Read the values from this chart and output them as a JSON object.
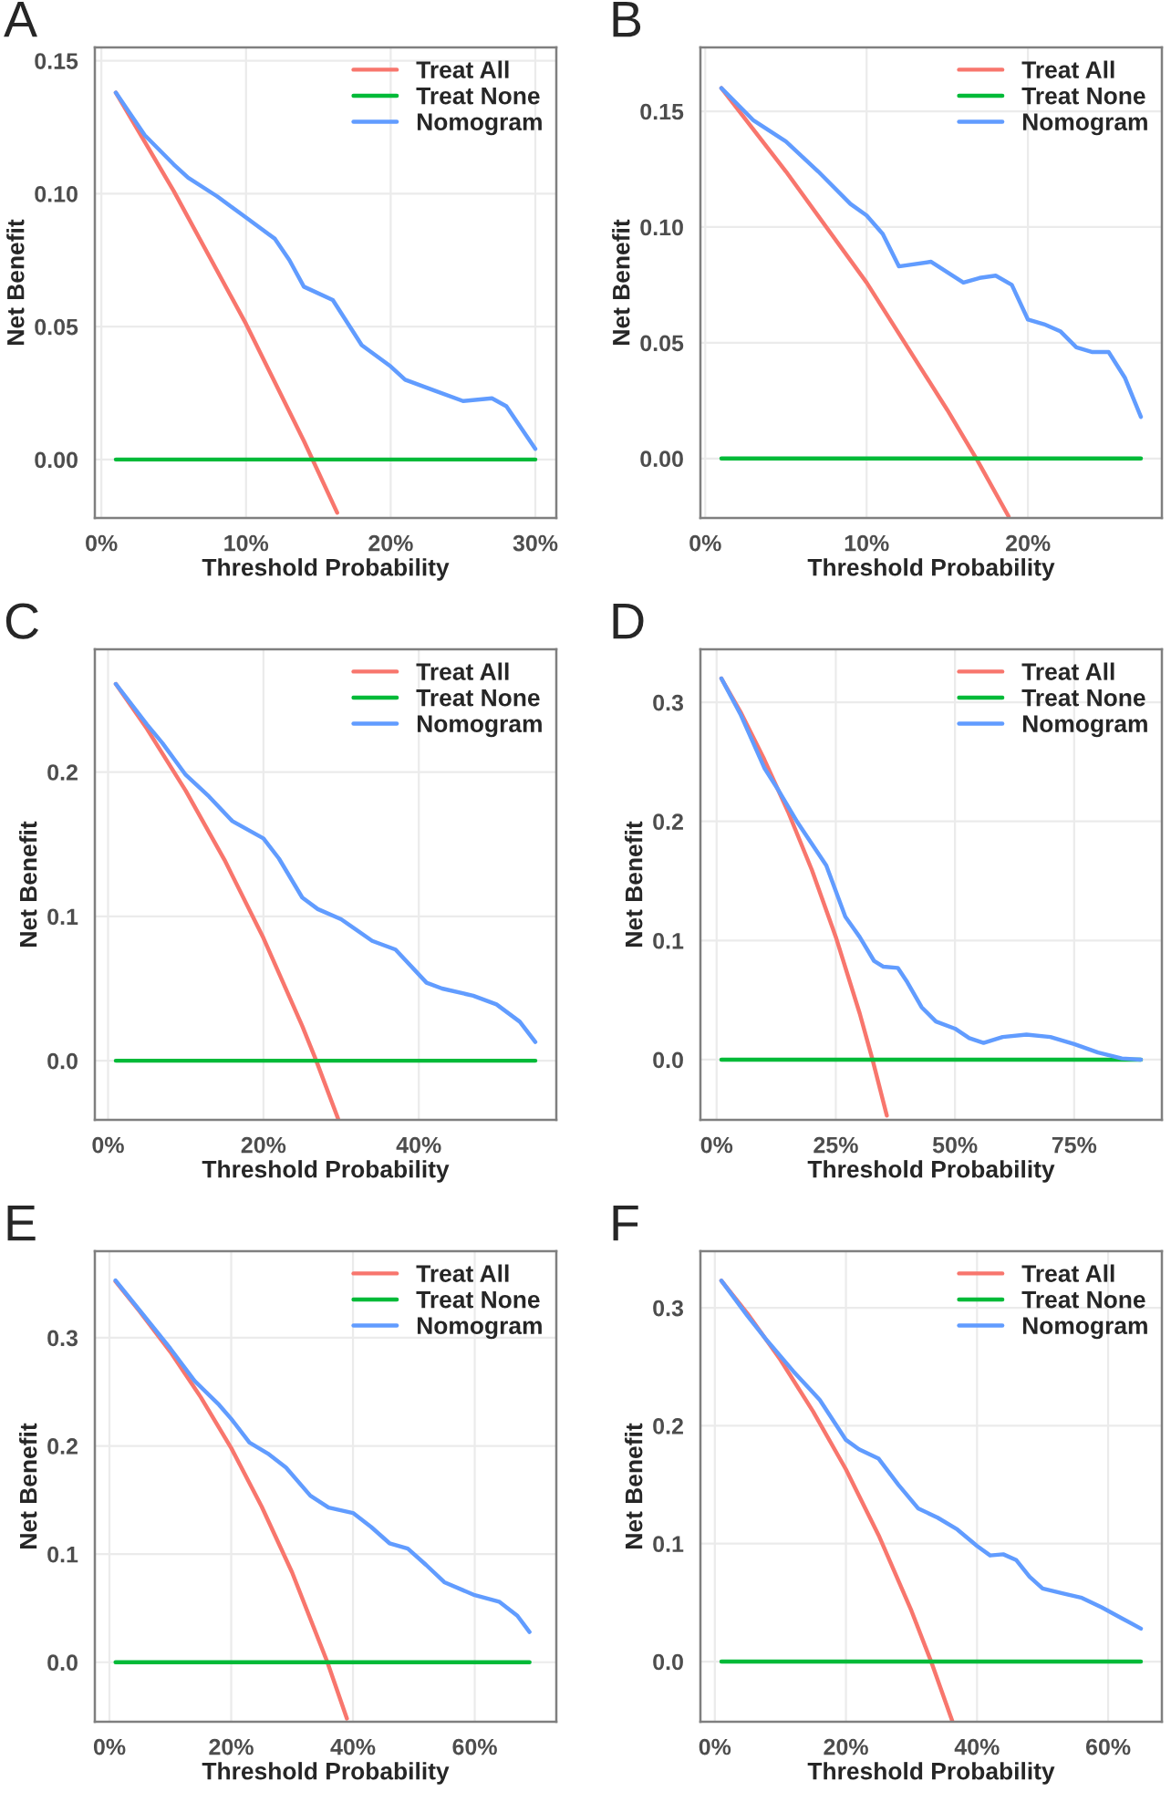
{
  "chart_data": [
    {
      "type": "line",
      "title": "A",
      "xlabel": "Threshold Probability",
      "ylabel": "Net Benefit",
      "legend": "top right",
      "grid": true,
      "xlim": [
        -0.0045,
        0.3145
      ],
      "ylim": [
        -0.022,
        0.155
      ],
      "xticks": [
        {
          "value": 0,
          "label": "0%"
        },
        {
          "value": 0.1,
          "label": "10%"
        },
        {
          "value": 0.2,
          "label": "20%"
        },
        {
          "value": 0.3,
          "label": "30%"
        }
      ],
      "yticks": [
        {
          "value": 0,
          "label": "0.00"
        },
        {
          "value": 0.05,
          "label": "0.05"
        },
        {
          "value": 0.1,
          "label": "0.10"
        },
        {
          "value": 0.15,
          "label": "0.15"
        }
      ],
      "series": [
        {
          "name": "Treat All",
          "color": "#f8766d",
          "x": [
            0.01,
            0.05,
            0.1,
            0.14,
            0.163
          ],
          "values": [
            0.138,
            0.101,
            0.051,
            0.007,
            -0.02
          ]
        },
        {
          "name": "Treat None",
          "color": "#00ba38",
          "x": [
            0.01,
            0.3
          ],
          "values": [
            0,
            0
          ]
        },
        {
          "name": "Nomogram",
          "color": "#619cff",
          "x": [
            0.01,
            0.03,
            0.05,
            0.06,
            0.08,
            0.1,
            0.12,
            0.13,
            0.14,
            0.16,
            0.18,
            0.2,
            0.21,
            0.23,
            0.25,
            0.27,
            0.28,
            0.3
          ],
          "values": [
            0.138,
            0.122,
            0.111,
            0.106,
            0.099,
            0.091,
            0.083,
            0.075,
            0.065,
            0.06,
            0.043,
            0.035,
            0.03,
            0.026,
            0.022,
            0.023,
            0.02,
            0.004
          ]
        }
      ]
    },
    {
      "type": "line",
      "title": "B",
      "xlabel": "Threshold Probability",
      "ylabel": "Net Benefit",
      "legend": "top right",
      "grid": true,
      "xlim": [
        -0.003,
        0.283
      ],
      "ylim": [
        -0.0257,
        0.1776
      ],
      "xticks": [
        {
          "value": 0,
          "label": "0%"
        },
        {
          "value": 0.1,
          "label": "10%"
        },
        {
          "value": 0.2,
          "label": "20%"
        }
      ],
      "yticks": [
        {
          "value": 0,
          "label": "0.00"
        },
        {
          "value": 0.05,
          "label": "0.05"
        },
        {
          "value": 0.1,
          "label": "0.10"
        },
        {
          "value": 0.15,
          "label": "0.15"
        }
      ],
      "series": [
        {
          "name": "Treat All",
          "color": "#f8766d",
          "x": [
            0.01,
            0.05,
            0.1,
            0.15,
            0.168,
            0.188
          ],
          "values": [
            0.16,
            0.124,
            0.076,
            0.021,
            0,
            -0.025
          ]
        },
        {
          "name": "Treat None",
          "color": "#00ba38",
          "x": [
            0.01,
            0.27
          ],
          "values": [
            0,
            0
          ]
        },
        {
          "name": "Nomogram",
          "color": "#619cff",
          "x": [
            0.01,
            0.03,
            0.05,
            0.07,
            0.09,
            0.1,
            0.11,
            0.12,
            0.14,
            0.16,
            0.17,
            0.18,
            0.19,
            0.2,
            0.21,
            0.22,
            0.23,
            0.24,
            0.25,
            0.26,
            0.27
          ],
          "values": [
            0.16,
            0.146,
            0.137,
            0.124,
            0.11,
            0.105,
            0.097,
            0.083,
            0.085,
            0.076,
            0.078,
            0.079,
            0.075,
            0.06,
            0.058,
            0.055,
            0.048,
            0.046,
            0.046,
            0.035,
            0.018
          ]
        }
      ]
    },
    {
      "type": "line",
      "title": "C",
      "xlabel": "Threshold Probability",
      "ylabel": "Net Benefit",
      "legend": "top right",
      "grid": true,
      "xlim": [
        -0.017,
        0.577
      ],
      "ylim": [
        -0.041,
        0.285
      ],
      "xticks": [
        {
          "value": 0,
          "label": "0%"
        },
        {
          "value": 0.2,
          "label": "20%"
        },
        {
          "value": 0.4,
          "label": "40%"
        }
      ],
      "yticks": [
        {
          "value": 0,
          "label": "0.0"
        },
        0.1,
        0.2
      ],
      "series": [
        {
          "name": "Treat All",
          "color": "#f8766d",
          "x": [
            0.01,
            0.05,
            0.1,
            0.15,
            0.2,
            0.25,
            0.268,
            0.296
          ],
          "values": [
            0.261,
            0.23,
            0.187,
            0.139,
            0.085,
            0.024,
            0,
            -0.04
          ]
        },
        {
          "name": "Treat None",
          "color": "#00ba38",
          "x": [
            0.01,
            0.55
          ],
          "values": [
            0,
            0
          ]
        },
        {
          "name": "Nomogram",
          "color": "#619cff",
          "x": [
            0.01,
            0.05,
            0.07,
            0.1,
            0.13,
            0.16,
            0.2,
            0.22,
            0.25,
            0.27,
            0.3,
            0.34,
            0.37,
            0.41,
            0.43,
            0.47,
            0.5,
            0.53,
            0.55
          ],
          "values": [
            0.261,
            0.233,
            0.22,
            0.198,
            0.183,
            0.166,
            0.154,
            0.14,
            0.113,
            0.105,
            0.098,
            0.083,
            0.077,
            0.054,
            0.05,
            0.045,
            0.039,
            0.027,
            0.013
          ]
        }
      ]
    },
    {
      "type": "line",
      "title": "D",
      "xlabel": "Threshold Probability",
      "ylabel": "Net Benefit",
      "legend": "top right",
      "grid": true,
      "xlim": [
        -0.034,
        0.934
      ],
      "ylim": [
        -0.0506,
        0.3445
      ],
      "xticks": [
        {
          "value": 0,
          "label": "0%"
        },
        {
          "value": 0.25,
          "label": "25%"
        },
        {
          "value": 0.5,
          "label": "50%"
        },
        {
          "value": 0.75,
          "label": "75%"
        }
      ],
      "yticks": [
        {
          "value": 0,
          "label": "0.0"
        },
        0.1,
        0.2,
        0.3
      ],
      "series": [
        {
          "name": "Treat All",
          "color": "#f8766d",
          "x": [
            0.01,
            0.05,
            0.1,
            0.15,
            0.2,
            0.25,
            0.3,
            0.327,
            0.357
          ],
          "values": [
            0.32,
            0.292,
            0.252,
            0.208,
            0.159,
            0.103,
            0.039,
            0,
            -0.047
          ]
        },
        {
          "name": "Treat None",
          "color": "#00ba38",
          "x": [
            0.01,
            0.89
          ],
          "values": [
            0,
            0
          ]
        },
        {
          "name": "Nomogram",
          "color": "#619cff",
          "x": [
            0.01,
            0.05,
            0.1,
            0.13,
            0.17,
            0.2,
            0.23,
            0.27,
            0.3,
            0.33,
            0.35,
            0.38,
            0.4,
            0.43,
            0.46,
            0.5,
            0.53,
            0.56,
            0.6,
            0.65,
            0.7,
            0.75,
            0.8,
            0.85,
            0.89
          ],
          "values": [
            0.32,
            0.29,
            0.245,
            0.226,
            0.199,
            0.181,
            0.163,
            0.12,
            0.103,
            0.083,
            0.078,
            0.077,
            0.065,
            0.044,
            0.032,
            0.026,
            0.018,
            0.014,
            0.019,
            0.021,
            0.019,
            0.013,
            0.006,
            0.001,
            0.0
          ]
        }
      ]
    },
    {
      "type": "line",
      "title": "E",
      "xlabel": "Threshold Probability",
      "ylabel": "Net Benefit",
      "legend": "top right",
      "grid": true,
      "xlim": [
        -0.024,
        0.734
      ],
      "ylim": [
        -0.055,
        0.38
      ],
      "xticks": [
        {
          "value": 0,
          "label": "0%"
        },
        {
          "value": 0.2,
          "label": "20%"
        },
        {
          "value": 0.4,
          "label": "40%"
        },
        {
          "value": 0.6,
          "label": "60%"
        }
      ],
      "yticks": [
        {
          "value": 0,
          "label": "0.0"
        },
        0.1,
        0.2,
        0.3
      ],
      "series": [
        {
          "name": "Treat All",
          "color": "#f8766d",
          "x": [
            0.01,
            0.05,
            0.1,
            0.15,
            0.2,
            0.25,
            0.3,
            0.358,
            0.39
          ],
          "values": [
            0.352,
            0.324,
            0.287,
            0.245,
            0.198,
            0.144,
            0.083,
            0,
            -0.052
          ]
        },
        {
          "name": "Treat None",
          "color": "#00ba38",
          "x": [
            0.01,
            0.69
          ],
          "values": [
            0,
            0
          ]
        },
        {
          "name": "Nomogram",
          "color": "#619cff",
          "x": [
            0.01,
            0.05,
            0.1,
            0.14,
            0.18,
            0.2,
            0.23,
            0.26,
            0.29,
            0.33,
            0.36,
            0.4,
            0.43,
            0.46,
            0.49,
            0.52,
            0.55,
            0.6,
            0.64,
            0.67,
            0.69
          ],
          "values": [
            0.353,
            0.325,
            0.29,
            0.26,
            0.238,
            0.225,
            0.203,
            0.193,
            0.18,
            0.154,
            0.143,
            0.138,
            0.125,
            0.11,
            0.105,
            0.09,
            0.074,
            0.062,
            0.056,
            0.043,
            0.028
          ]
        }
      ]
    },
    {
      "type": "line",
      "title": "F",
      "xlabel": "Threshold Probability",
      "ylabel": "Net Benefit",
      "legend": "top right",
      "grid": true,
      "xlim": [
        -0.022,
        0.682
      ],
      "ylim": [
        -0.051,
        0.348
      ],
      "xticks": [
        {
          "value": 0,
          "label": "0%"
        },
        {
          "value": 0.2,
          "label": "20%"
        },
        {
          "value": 0.4,
          "label": "40%"
        },
        {
          "value": 0.6,
          "label": "60%"
        }
      ],
      "yticks": [
        {
          "value": 0,
          "label": "0.0"
        },
        0.1,
        0.2,
        0.3
      ],
      "series": [
        {
          "name": "Treat All",
          "color": "#f8766d",
          "x": [
            0.01,
            0.05,
            0.1,
            0.15,
            0.2,
            0.25,
            0.3,
            0.33,
            0.362
          ],
          "values": [
            0.323,
            0.295,
            0.256,
            0.212,
            0.163,
            0.107,
            0.043,
            0,
            -0.05
          ]
        },
        {
          "name": "Treat None",
          "color": "#00ba38",
          "x": [
            0.01,
            0.65
          ],
          "values": [
            0,
            0
          ]
        },
        {
          "name": "Nomogram",
          "color": "#619cff",
          "x": [
            0.01,
            0.05,
            0.08,
            0.12,
            0.16,
            0.18,
            0.2,
            0.22,
            0.25,
            0.28,
            0.31,
            0.34,
            0.37,
            0.4,
            0.42,
            0.44,
            0.46,
            0.48,
            0.5,
            0.53,
            0.56,
            0.59,
            0.62,
            0.65
          ],
          "values": [
            0.323,
            0.293,
            0.272,
            0.246,
            0.222,
            0.205,
            0.188,
            0.18,
            0.172,
            0.15,
            0.13,
            0.122,
            0.112,
            0.098,
            0.09,
            0.091,
            0.086,
            0.072,
            0.062,
            0.058,
            0.054,
            0.046,
            0.037,
            0.028
          ]
        }
      ]
    }
  ]
}
